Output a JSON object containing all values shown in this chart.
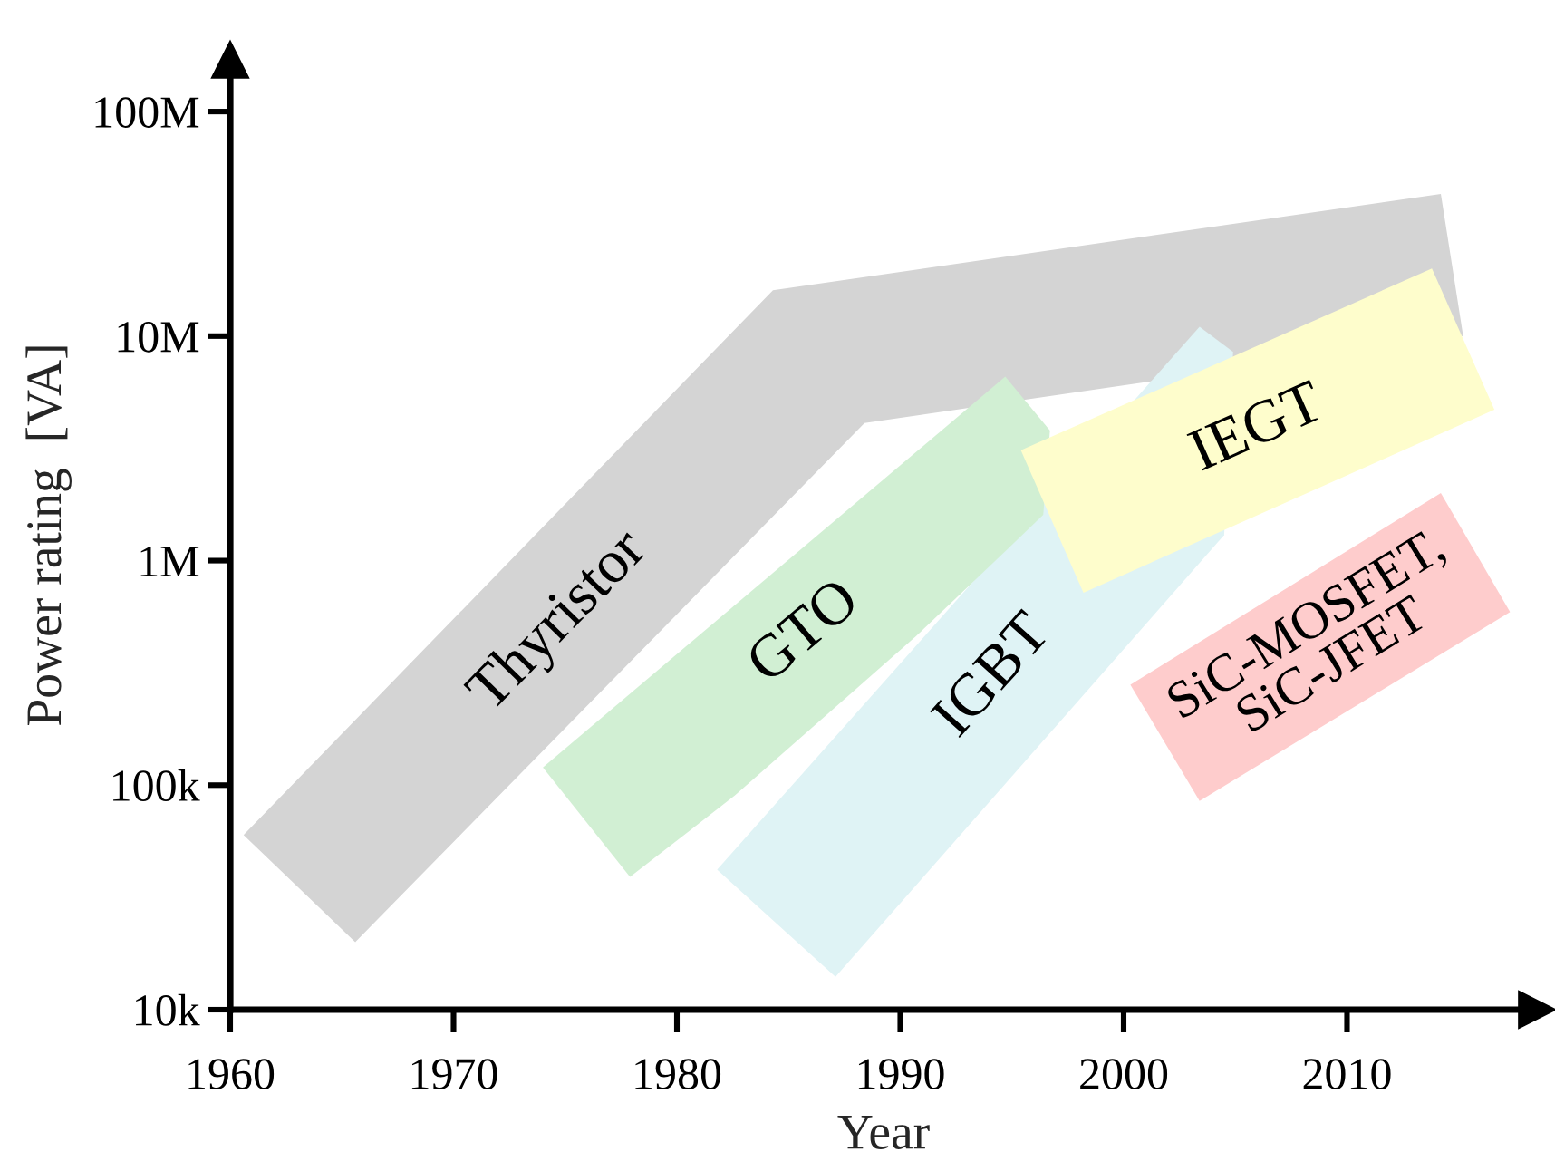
{
  "chart_data": {
    "type": "area",
    "xlabel": "Year",
    "ylabel": "Power rating  [VA]",
    "log": "y",
    "xlim": [
      1960,
      2018.5
    ],
    "ylim": [
      10000,
      170000000
    ],
    "xticks": [
      1960,
      1970,
      1980,
      1990,
      2000,
      2010
    ],
    "yticks": [
      {
        "value": 10000,
        "label": "10k"
      },
      {
        "value": 100000,
        "label": "100k"
      },
      {
        "value": 1000000,
        "label": "1M"
      },
      {
        "value": 10000000,
        "label": "10M"
      },
      {
        "value": 100000000,
        "label": "100M"
      }
    ],
    "series": [
      {
        "name": "Thyristor",
        "color": "#d4d4d4",
        "x": [
          1960.6,
          1984.3,
          2014.2,
          2015.2,
          1988.4,
          1965.6
        ],
        "values": [
          60000,
          16000000,
          43000000,
          10000000,
          4100000,
          20000
        ]
      },
      {
        "name": "IGBT",
        "color": "#dff3f5",
        "x": [
          1981.8,
          2003.4,
          2004.9,
          2004.5,
          1987.1
        ],
        "values": [
          42000,
          11000000,
          8500000,
          1300000,
          14000
        ]
      },
      {
        "name": "GTO",
        "color": "#d1efd3",
        "x": [
          1974.0,
          1994.7,
          1996.7,
          1996.4,
          1994.7,
          1990.7,
          1982.6,
          1977.9
        ],
        "values": [
          120000,
          6600000,
          3800000,
          1600000,
          1100000,
          460000,
          90000,
          39000
        ]
      },
      {
        "name": "IEGT",
        "color": "#fefdcc",
        "x": [
          1995.4,
          2013.8,
          2016.6,
          1998.2
        ],
        "values": [
          3100000,
          20000000,
          4700000,
          720000
        ]
      },
      {
        "name": "SiC-MOSFET,\nSiC-JFET",
        "color": "#fecccc",
        "x": [
          2000.3,
          2014.2,
          2017.3,
          2003.4
        ],
        "values": [
          280000,
          2000000,
          590000,
          85000
        ]
      }
    ]
  }
}
